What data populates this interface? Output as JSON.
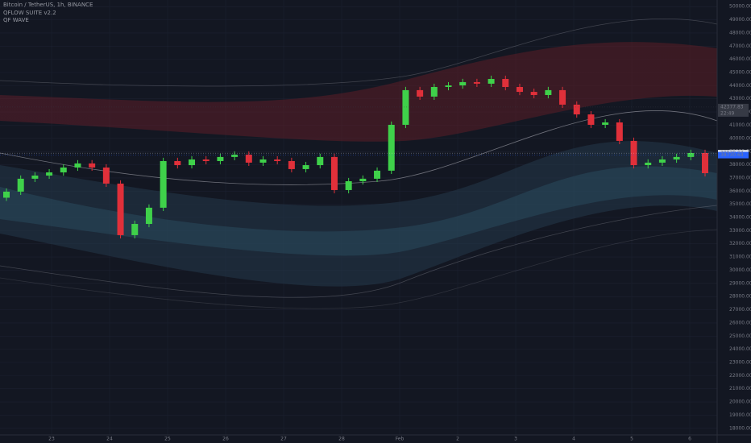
{
  "chart_data": {
    "type": "candlestick",
    "title": "Bitcoin / TetherUS, 1h, BINANCE",
    "indicators": [
      "QFLOW SUITE v2.2",
      "QF WAVE"
    ],
    "categories": [
      "23",
      "24",
      "25",
      "26",
      "27",
      "28",
      "Feb",
      "2",
      "3",
      "4",
      "5",
      "6"
    ],
    "up_color": "#3fd14a",
    "down_color": "#e0303a",
    "open": [
      35500,
      35960,
      36940,
      37180,
      37420,
      37790,
      38100,
      37790,
      36570,
      32660,
      33510,
      34740,
      38280,
      37970,
      38400,
      38280,
      38590,
      38770,
      38160,
      38400,
      38280,
      37670,
      37970,
      38590,
      36080,
      36750,
      36940,
      37550,
      41030,
      43660,
      43170,
      43900,
      44020,
      44270,
      44150,
      44510,
      43900,
      43530,
      43290,
      43660,
      42560,
      41820,
      41030,
      41210,
      39810,
      37970,
      38160,
      38400,
      38590,
      38890
    ],
    "high": [
      36210,
      37190,
      37430,
      37670,
      38040,
      38350,
      38350,
      38040,
      36820,
      33760,
      34990,
      38530,
      38530,
      38650,
      38650,
      38840,
      39020,
      39020,
      38650,
      38650,
      38530,
      38220,
      38840,
      38840,
      37000,
      37190,
      37800,
      41280,
      43910,
      43910,
      44150,
      44270,
      44520,
      44520,
      44760,
      44760,
      44150,
      43780,
      43910,
      43910,
      42810,
      42070,
      41460,
      41460,
      40060,
      38410,
      38650,
      38840,
      39140,
      39140
    ],
    "low": [
      35250,
      35710,
      36690,
      36930,
      37170,
      37540,
      37540,
      36320,
      32410,
      32410,
      33260,
      34490,
      37720,
      37720,
      38030,
      38030,
      38340,
      37910,
      37910,
      38030,
      37420,
      37420,
      37720,
      35830,
      35830,
      36500,
      36690,
      37300,
      40780,
      42920,
      42920,
      43650,
      43770,
      43900,
      43900,
      43650,
      43280,
      43040,
      43040,
      42310,
      41570,
      40780,
      40780,
      39560,
      37720,
      37720,
      37910,
      38150,
      38340,
      37110
    ],
    "close": [
      35960,
      36940,
      37180,
      37420,
      37790,
      38100,
      37790,
      36570,
      32660,
      33510,
      34740,
      38280,
      37970,
      38400,
      38280,
      38590,
      38770,
      38160,
      38400,
      38280,
      37670,
      37970,
      38590,
      36080,
      36750,
      36940,
      37550,
      41030,
      43660,
      43170,
      43900,
      44020,
      44270,
      44150,
      44510,
      43900,
      43530,
      43290,
      43660,
      42560,
      41820,
      41030,
      41210,
      39810,
      37970,
      38160,
      38400,
      38590,
      38890,
      37360
    ],
    "ylim": [
      17500,
      50500
    ],
    "yticks": [
      {
        "value": 18000,
        "label": "18000.00"
      },
      {
        "value": 19000,
        "label": "19000.00"
      },
      {
        "value": 20000,
        "label": "20000.00"
      },
      {
        "value": 21000,
        "label": "21000.00"
      },
      {
        "value": 22000,
        "label": "22000.00"
      },
      {
        "value": 23000,
        "label": "23000.00"
      },
      {
        "value": 24000,
        "label": "24000.00"
      },
      {
        "value": 25000,
        "label": "25000.00"
      },
      {
        "value": 26000,
        "label": "26000.00"
      },
      {
        "value": 27000,
        "label": "27000.00"
      },
      {
        "value": 28000,
        "label": "28000.00"
      },
      {
        "value": 29000,
        "label": "29000.00"
      },
      {
        "value": 30000,
        "label": "30000.00"
      },
      {
        "value": 31000,
        "label": "31000.00"
      },
      {
        "value": 32000,
        "label": "32000.00"
      },
      {
        "value": 33000,
        "label": "33000.00"
      },
      {
        "value": 34000,
        "label": "34000.00"
      },
      {
        "value": 35000,
        "label": "35000.00"
      },
      {
        "value": 36000,
        "label": "36000.00"
      },
      {
        "value": 37000,
        "label": "37000.00"
      },
      {
        "value": 38000,
        "label": "38000.00"
      },
      {
        "value": 39000,
        "label": "39000.00"
      },
      {
        "value": 40000,
        "label": "40000.00"
      },
      {
        "value": 41000,
        "label": "41000.00"
      },
      {
        "value": 42000,
        "label": "42000.00"
      },
      {
        "value": 43000,
        "label": "43000.00"
      },
      {
        "value": 44000,
        "label": "44000.00"
      },
      {
        "value": 45000,
        "label": "45000.00"
      },
      {
        "value": 46000,
        "label": "46000.00"
      },
      {
        "value": 47000,
        "label": "47000.00"
      },
      {
        "value": 48000,
        "label": "48000.00"
      },
      {
        "value": 49000,
        "label": "49000.00"
      },
      {
        "value": 50000,
        "label": "50000.00"
      }
    ],
    "grid": true,
    "price_markers": [
      {
        "value": 42377.83,
        "time": "22:49",
        "color": "#363a45"
      },
      {
        "value": 38878.04,
        "color": "#e0e3eb"
      },
      {
        "value": 38730.63,
        "color": "#2962ff"
      }
    ]
  }
}
